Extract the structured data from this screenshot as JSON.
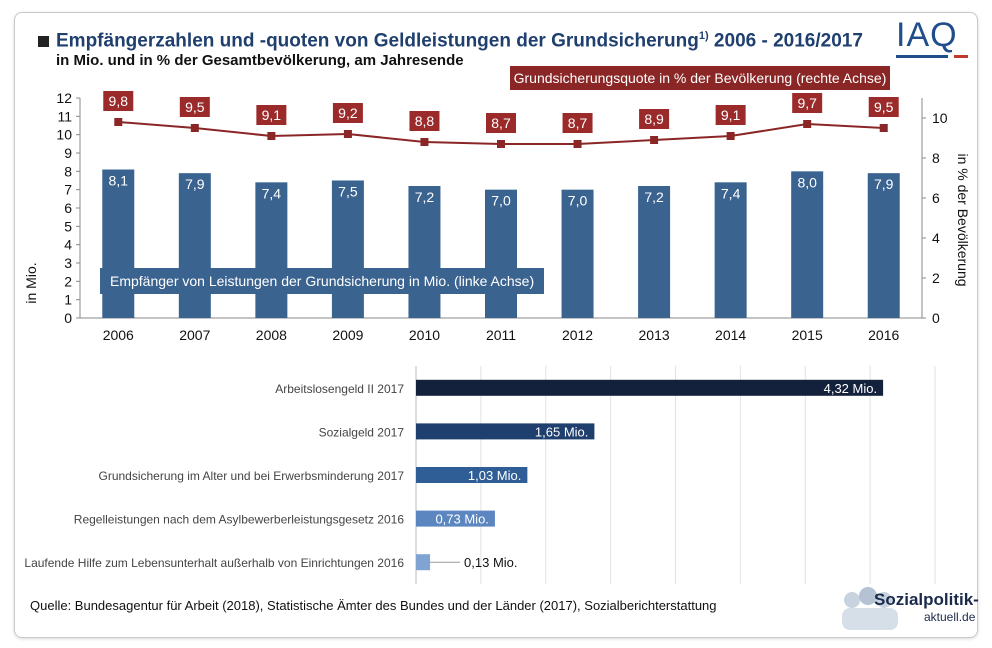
{
  "header": {
    "title": "Empfängerzahlen und -quoten von Geldleistungen der Grundsicherung",
    "title_footnote": "1)",
    "title_years": " 2006 - 2016/2017",
    "subtitle": "in Mio. und in % der Gesamtbevölkerung, am Jahresende",
    "logo_text": "IAQ"
  },
  "legend": {
    "quote": "Grundsicherungsquote in % der Bevölkerung (rechte Achse)",
    "recipients": "Empfänger von Leistungen der Grundsicherung in Mio. (linke Achse)"
  },
  "footer": {
    "source": "Quelle: Bundesagentur für Arbeit (2018), Statistische Ämter des Bundes und der Länder (2017), Sozialberichterstattung",
    "brand_line1": "Sozialpolitik-",
    "brand_line2": "aktuell.de"
  },
  "colors": {
    "bar_blue": "#3a6390",
    "line_red": "#8b2626",
    "label_red_bg": "#9b2b2b",
    "hbar_1": "#14213d",
    "hbar_2": "#1f3f6f",
    "hbar_3": "#2f5e96",
    "hbar_4": "#5b86c0",
    "hbar_5": "#7fa3d2"
  },
  "chart_data": [
    {
      "type": "bar",
      "categories": [
        "2006",
        "2007",
        "2008",
        "2009",
        "2010",
        "2011",
        "2012",
        "2013",
        "2014",
        "2015",
        "2016"
      ],
      "series": [
        {
          "name": "Empfänger von Leistungen der Grundsicherung in Mio. (linke Achse)",
          "axis": "left",
          "values": [
            8.1,
            7.9,
            7.4,
            7.5,
            7.2,
            7.0,
            7.0,
            7.2,
            7.4,
            8.0,
            7.9
          ],
          "labels": [
            "8,1",
            "7,9",
            "7,4",
            "7,5",
            "7,2",
            "7,0",
            "7,0",
            "7,2",
            "7,4",
            "8,0",
            "7,9"
          ]
        },
        {
          "name": "Grundsicherungsquote in % der Bevölkerung (rechte Achse)",
          "axis": "right",
          "type": "line",
          "values": [
            9.8,
            9.5,
            9.1,
            9.2,
            8.8,
            8.7,
            8.7,
            8.9,
            9.1,
            9.7,
            9.5
          ],
          "labels": [
            "9,8",
            "9,5",
            "9,1",
            "9,2",
            "8,8",
            "8,7",
            "8,7",
            "8,9",
            "9,1",
            "9,7",
            "9,5"
          ]
        }
      ],
      "ylabel": "in Mio.",
      "ylabel_right": "in % der Bevölkerung",
      "ylim": [
        0,
        12
      ],
      "ylim_right": [
        0,
        11
      ],
      "yticks": [
        "0",
        "1",
        "2",
        "3",
        "4",
        "5",
        "6",
        "7",
        "8",
        "9",
        "10",
        "11",
        "12"
      ],
      "yticks_right": [
        "0",
        "2",
        "4",
        "6",
        "8",
        "10"
      ],
      "ytick_values_right": [
        0,
        2,
        4,
        6,
        8,
        10
      ],
      "grid": false
    },
    {
      "type": "bar",
      "orientation": "horizontal",
      "categories": [
        "Arbeitslosengeld II 2017",
        "Sozialgeld 2017",
        "Grundsicherung im Alter und bei Erwerbsminderung 2017",
        "Regelleistungen nach dem Asylbewerberleistungsgesetz 2016",
        "Laufende Hilfe zum Lebensunterhalt außerhalb von Einrichtungen 2016"
      ],
      "values": [
        4.32,
        1.65,
        1.03,
        0.73,
        0.13
      ],
      "labels": [
        "4,32 Mio.",
        "1,65 Mio.",
        "1,03 Mio.",
        "0,73 Mio.",
        "0,13 Mio."
      ],
      "xlim": [
        0,
        4.8
      ],
      "grid": true
    }
  ]
}
